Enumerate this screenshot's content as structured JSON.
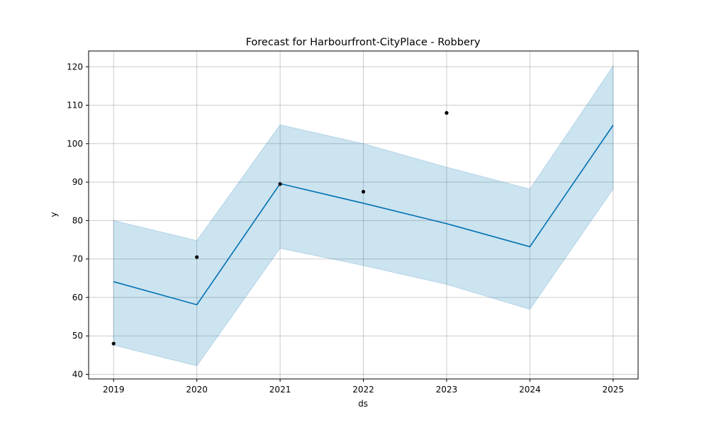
{
  "chart_data": {
    "type": "line",
    "title": "Forecast for Harbourfront-CityPlace - Robbery",
    "xlabel": "ds",
    "ylabel": "y",
    "x": [
      "2019",
      "2020",
      "2021",
      "2022",
      "2023",
      "2024",
      "2025"
    ],
    "xlim": [
      2018.7,
      2025.3
    ],
    "ylim": [
      38.8,
      124.1
    ],
    "yticks": [
      40,
      50,
      60,
      70,
      80,
      90,
      100,
      110,
      120
    ],
    "grid": true,
    "colors": {
      "forecast_line": "#0072B2",
      "interval_fill": "#0072B2",
      "actual_points": "#000000"
    },
    "series": [
      {
        "values": [
          64.1,
          58.1,
          89.6,
          84.5,
          79.2,
          73.2,
          104.8
        ]
      },
      {
        "values": [
          47.6,
          42.2,
          72.8,
          68.3,
          63.4,
          56.9,
          88.2
        ]
      },
      {
        "values": [
          80.0,
          74.8,
          104.9,
          100.0,
          93.9,
          88.2,
          120.2
        ]
      },
      {
        "x": [
          "2019",
          "2020",
          "2021",
          "2022",
          "2023"
        ],
        "values": [
          48,
          70.5,
          89.5,
          87.5,
          108
        ]
      }
    ]
  }
}
